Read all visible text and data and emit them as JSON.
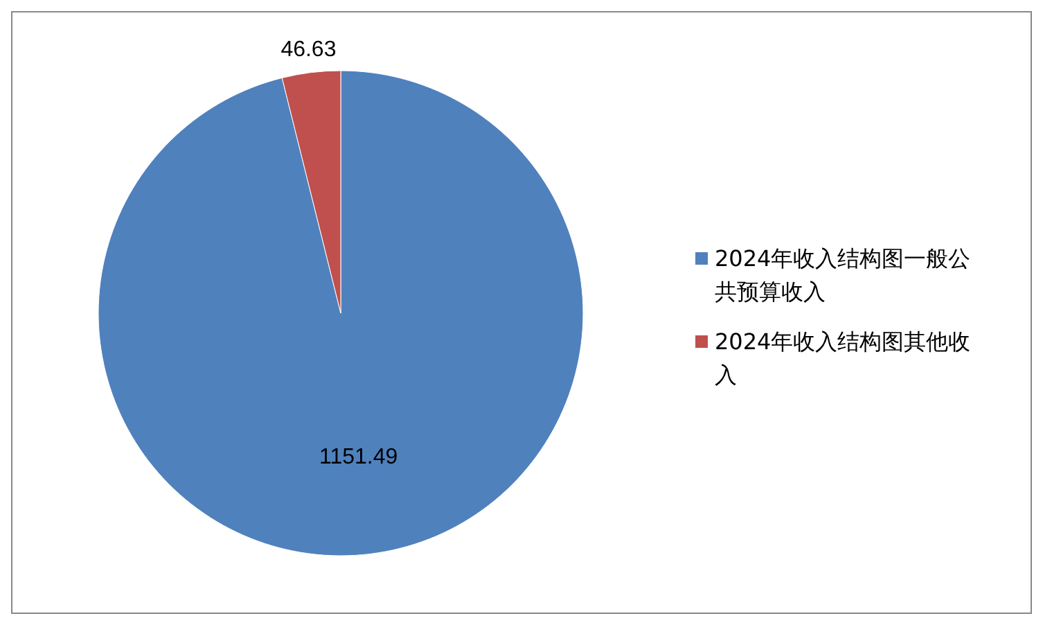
{
  "chart_data": {
    "type": "pie",
    "categories": [
      "2024年收入结构图一般公共预算收入",
      "2024年收入结构图其他收入"
    ],
    "values": [
      1151.49,
      46.63
    ],
    "colors": [
      "#4f81bd",
      "#c0504d"
    ],
    "data_labels": true,
    "legend": "right"
  }
}
